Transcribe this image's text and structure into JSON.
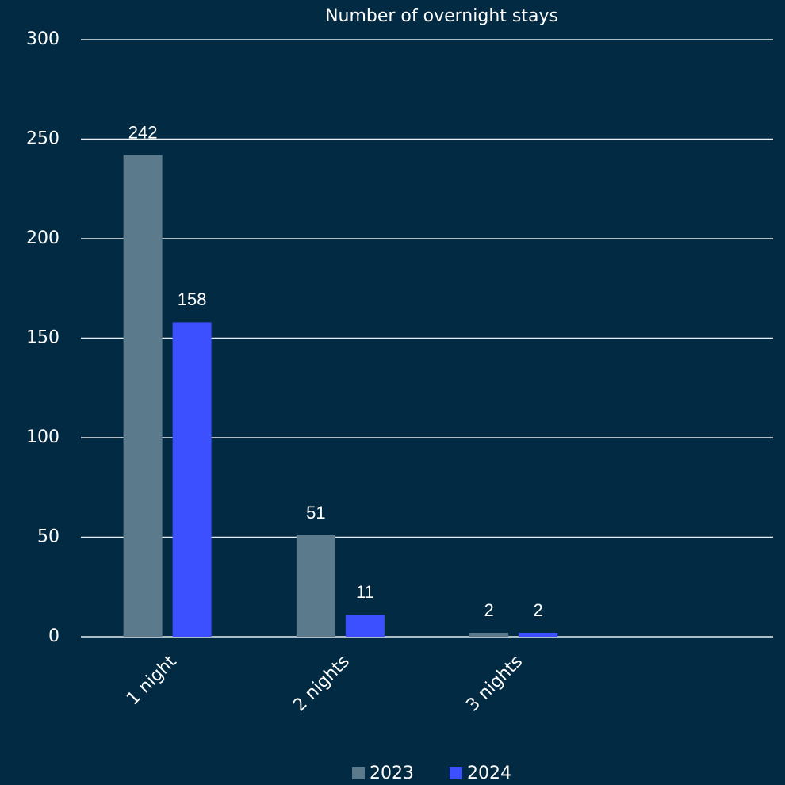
{
  "chart_data": {
    "type": "bar",
    "title": "Number of overnight stays",
    "categories": [
      "1 night",
      "2 nights",
      "3 nights",
      null
    ],
    "series": [
      {
        "name": "2023",
        "color": "#5b7a8c",
        "values": [
          242,
          51,
          2,
          null
        ]
      },
      {
        "name": "2024",
        "color": "#3d50ff",
        "values": [
          158,
          11,
          2,
          null
        ]
      }
    ],
    "ylim": [
      0,
      300
    ],
    "yticks": [
      0,
      50,
      100,
      150,
      200,
      250,
      300
    ],
    "grid": true,
    "legend": "bottom"
  }
}
